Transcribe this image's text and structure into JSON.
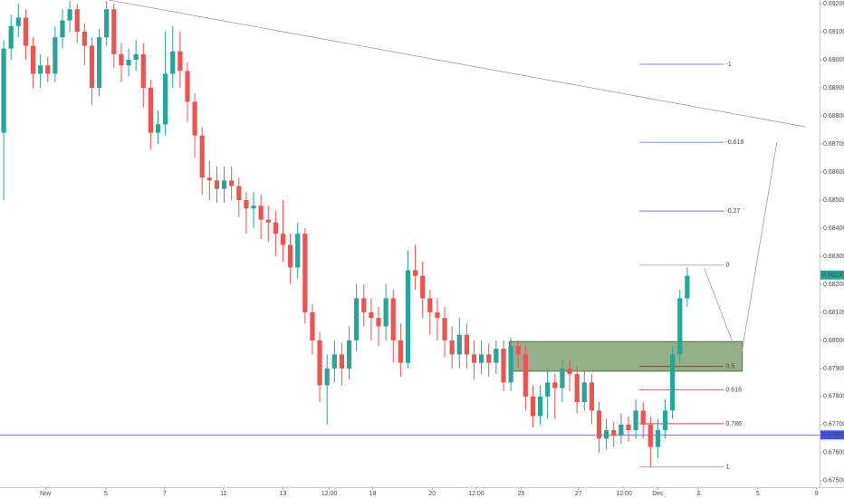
{
  "chart_data": {
    "type": "candlestick",
    "open": [
      0.6874,
      0.6904,
      0.6912,
      0.6915,
      0.6905,
      0.6895,
      0.6898,
      0.6895,
      0.6908,
      0.6914,
      0.6918,
      0.691,
      0.6905,
      0.689,
      0.6908,
      0.6918,
      0.6902,
      0.6898,
      0.69,
      0.6902,
      0.689,
      0.6874,
      0.6877,
      0.6895,
      0.6903,
      0.6896,
      0.6885,
      0.6873,
      0.6858,
      0.6857,
      0.6854,
      0.6857,
      0.6855,
      0.685,
      0.6847,
      0.6848,
      0.6843,
      0.6842,
      0.6838,
      0.6834,
      0.6826,
      0.6838,
      0.681,
      0.68,
      0.6784,
      0.679,
      0.6795,
      0.679,
      0.68,
      0.6815,
      0.681,
      0.6808,
      0.6805,
      0.6815,
      0.68,
      0.6792,
      0.6825,
      0.6823,
      0.6815,
      0.681,
      0.6808,
      0.68,
      0.6795,
      0.6802,
      0.6795,
      0.6792,
      0.6795,
      0.6792,
      0.6797,
      0.6785,
      0.6798,
      0.6795,
      0.678,
      0.6773,
      0.678,
      0.6785,
      0.6783,
      0.679,
      0.6788,
      0.6778,
      0.6785,
      0.6775,
      0.6765,
      0.6768,
      0.6766,
      0.677,
      0.6768,
      0.6775,
      0.677,
      0.6762,
      0.6768,
      0.6775,
      0.6795,
      0.6815
    ],
    "high": [
      0.6907,
      0.6916,
      0.692,
      0.6918,
      0.6908,
      0.6902,
      0.6901,
      0.6912,
      0.6918,
      0.6921,
      0.692,
      0.6913,
      0.6908,
      0.6911,
      0.6921,
      0.692,
      0.6906,
      0.6904,
      0.6907,
      0.6906,
      0.6893,
      0.6882,
      0.691,
      0.6912,
      0.691,
      0.6899,
      0.6888,
      0.6876,
      0.6864,
      0.6862,
      0.6862,
      0.6862,
      0.6858,
      0.6853,
      0.6853,
      0.6852,
      0.6848,
      0.6846,
      0.685,
      0.6838,
      0.6842,
      0.684,
      0.6813,
      0.6803,
      0.6795,
      0.68,
      0.6799,
      0.6805,
      0.682,
      0.682,
      0.6815,
      0.6812,
      0.682,
      0.6818,
      0.6806,
      0.6832,
      0.6834,
      0.6828,
      0.6818,
      0.6815,
      0.6812,
      0.6805,
      0.6808,
      0.6806,
      0.68,
      0.68,
      0.6799,
      0.68,
      0.68,
      0.6801,
      0.68,
      0.6798,
      0.6784,
      0.6784,
      0.679,
      0.6788,
      0.6793,
      0.6793,
      0.6791,
      0.6789,
      0.6788,
      0.6778,
      0.6772,
      0.6771,
      0.6774,
      0.6773,
      0.6779,
      0.6778,
      0.6773,
      0.6772,
      0.6779,
      0.6798,
      0.6818,
      0.6826
    ],
    "low": [
      0.685,
      0.69,
      0.6908,
      0.69,
      0.689,
      0.689,
      0.6892,
      0.6892,
      0.6904,
      0.691,
      0.6906,
      0.6898,
      0.6884,
      0.6887,
      0.6905,
      0.6897,
      0.6892,
      0.6894,
      0.6896,
      0.6883,
      0.6868,
      0.687,
      0.6873,
      0.689,
      0.689,
      0.6878,
      0.6865,
      0.6852,
      0.685,
      0.6849,
      0.6849,
      0.685,
      0.6844,
      0.6838,
      0.684,
      0.6836,
      0.6835,
      0.683,
      0.6828,
      0.682,
      0.6822,
      0.6806,
      0.6795,
      0.6778,
      0.677,
      0.6785,
      0.6784,
      0.6786,
      0.6796,
      0.6805,
      0.68,
      0.6798,
      0.68,
      0.6792,
      0.6787,
      0.679,
      0.6818,
      0.6808,
      0.6802,
      0.68,
      0.6794,
      0.679,
      0.679,
      0.679,
      0.6786,
      0.6788,
      0.6787,
      0.6788,
      0.6782,
      0.6782,
      0.679,
      0.6775,
      0.6769,
      0.677,
      0.6772,
      0.6772,
      0.6778,
      0.6782,
      0.6774,
      0.6775,
      0.677,
      0.676,
      0.6761,
      0.6762,
      0.6763,
      0.6764,
      0.6765,
      0.6765,
      0.6755,
      0.6758,
      0.6765,
      0.6772,
      0.6792,
      0.6812
    ],
    "close": [
      0.6904,
      0.6912,
      0.6915,
      0.6905,
      0.6895,
      0.6898,
      0.6895,
      0.6908,
      0.6914,
      0.6918,
      0.691,
      0.6905,
      0.689,
      0.6908,
      0.6918,
      0.6902,
      0.6898,
      0.69,
      0.6902,
      0.689,
      0.6874,
      0.6877,
      0.6895,
      0.6903,
      0.6896,
      0.6885,
      0.6873,
      0.6858,
      0.6857,
      0.6854,
      0.6857,
      0.6855,
      0.685,
      0.6847,
      0.6848,
      0.6843,
      0.6842,
      0.6838,
      0.6834,
      0.6826,
      0.6838,
      0.681,
      0.68,
      0.6784,
      0.679,
      0.6795,
      0.679,
      0.68,
      0.6815,
      0.681,
      0.6808,
      0.6805,
      0.6815,
      0.68,
      0.6792,
      0.6825,
      0.6823,
      0.6815,
      0.681,
      0.6808,
      0.68,
      0.6795,
      0.6802,
      0.6795,
      0.6792,
      0.6795,
      0.6792,
      0.6797,
      0.6785,
      0.6798,
      0.6795,
      0.678,
      0.6773,
      0.678,
      0.6785,
      0.6783,
      0.679,
      0.6788,
      0.6778,
      0.6785,
      0.6775,
      0.6765,
      0.6768,
      0.6766,
      0.677,
      0.6768,
      0.6775,
      0.677,
      0.6762,
      0.6768,
      0.6775,
      0.6795,
      0.6815,
      0.6823
    ],
    "up_color": "#26a69a",
    "down_color": "#ef5350",
    "xlim": [
      -0.5,
      111
    ],
    "xticks": [
      {
        "value": 5.7,
        "label": "Nov"
      },
      {
        "value": 13.9,
        "label": "5"
      },
      {
        "value": 21.9,
        "label": "7"
      },
      {
        "value": 29.9,
        "label": "11"
      },
      {
        "value": 38,
        "label": "13"
      },
      {
        "value": 44.3,
        "label": "12:00"
      },
      {
        "value": 50.2,
        "label": "18"
      },
      {
        "value": 58.3,
        "label": "20"
      },
      {
        "value": 64.3,
        "label": "12:00"
      },
      {
        "value": 70.4,
        "label": "25"
      },
      {
        "value": 78.2,
        "label": "27"
      },
      {
        "value": 84.4,
        "label": "12:00"
      },
      {
        "value": 89,
        "label": "Dec"
      },
      {
        "value": 94.5,
        "label": "3"
      },
      {
        "value": 102.6,
        "label": "5"
      },
      {
        "value": 110.6,
        "label": "9"
      }
    ],
    "ylim": [
      0.67477,
      0.69213
    ],
    "yticks": [
      {
        "value": 0.675,
        "label": "0.67500"
      },
      {
        "value": 0.676,
        "label": "0.67600"
      },
      {
        "value": 0.677,
        "label": "0.67700"
      },
      {
        "value": 0.678,
        "label": "0.67800"
      },
      {
        "value": 0.679,
        "label": "0.67900"
      },
      {
        "value": 0.68,
        "label": "0.68000"
      },
      {
        "value": 0.681,
        "label": "0.68100"
      },
      {
        "value": 0.682,
        "label": "0.68200"
      },
      {
        "value": 0.683,
        "label": "0.68300"
      },
      {
        "value": 0.684,
        "label": "0.68400"
      },
      {
        "value": 0.685,
        "label": "0.68500"
      },
      {
        "value": 0.686,
        "label": "0.68600"
      },
      {
        "value": 0.687,
        "label": "0.68700"
      },
      {
        "value": 0.688,
        "label": "0.68800"
      },
      {
        "value": 0.689,
        "label": "0.68900"
      },
      {
        "value": 0.69,
        "label": "0.69000"
      },
      {
        "value": 0.691,
        "label": "0.69100"
      },
      {
        "value": 0.692,
        "label": "0.69200"
      }
    ],
    "trendline": {
      "x": [
        14.3,
        109.1
      ],
      "price": [
        0.69213,
        0.68761
      ],
      "color": "#9e9e9e"
    },
    "zone": {
      "x": [
        68.8,
        100.5
      ],
      "price": [
        0.67996,
        0.6789
      ],
      "color": "#6b8e5a"
    },
    "projection": {
      "x": [
        95.3,
        100.2,
        105.2
      ],
      "price": [
        0.68258,
        0.67923,
        0.68707
      ],
      "color": "#9e9e9e"
    },
    "fib_x": [
      86.5,
      98
    ],
    "fib_levels": [
      {
        "label": "-1",
        "price": 0.68984,
        "color": "#5c6bc0"
      },
      {
        "label": "-0.618",
        "price": 0.68706,
        "color": "#5c6bc0"
      },
      {
        "label": "-0.27",
        "price": 0.68461,
        "color": "#5c6bc0"
      },
      {
        "label": "0",
        "price": 0.68268,
        "color": "#9e9e9e"
      },
      {
        "label": "0.5",
        "price": 0.67907,
        "color": "#8b1a1a"
      },
      {
        "label": "0.618",
        "price": 0.67823,
        "color": "#c62828"
      },
      {
        "label": "0.786",
        "price": 0.67703,
        "color": "#c62828"
      },
      {
        "label": "1",
        "price": 0.67549,
        "color": "#9e9e9e"
      }
    ],
    "horizontal_line": {
      "price": 0.67663,
      "label": "0.67663",
      "color": "#3f51f5"
    },
    "last_price": {
      "value": 0.68233,
      "label": "0.68233",
      "color": "#26a69a"
    }
  }
}
